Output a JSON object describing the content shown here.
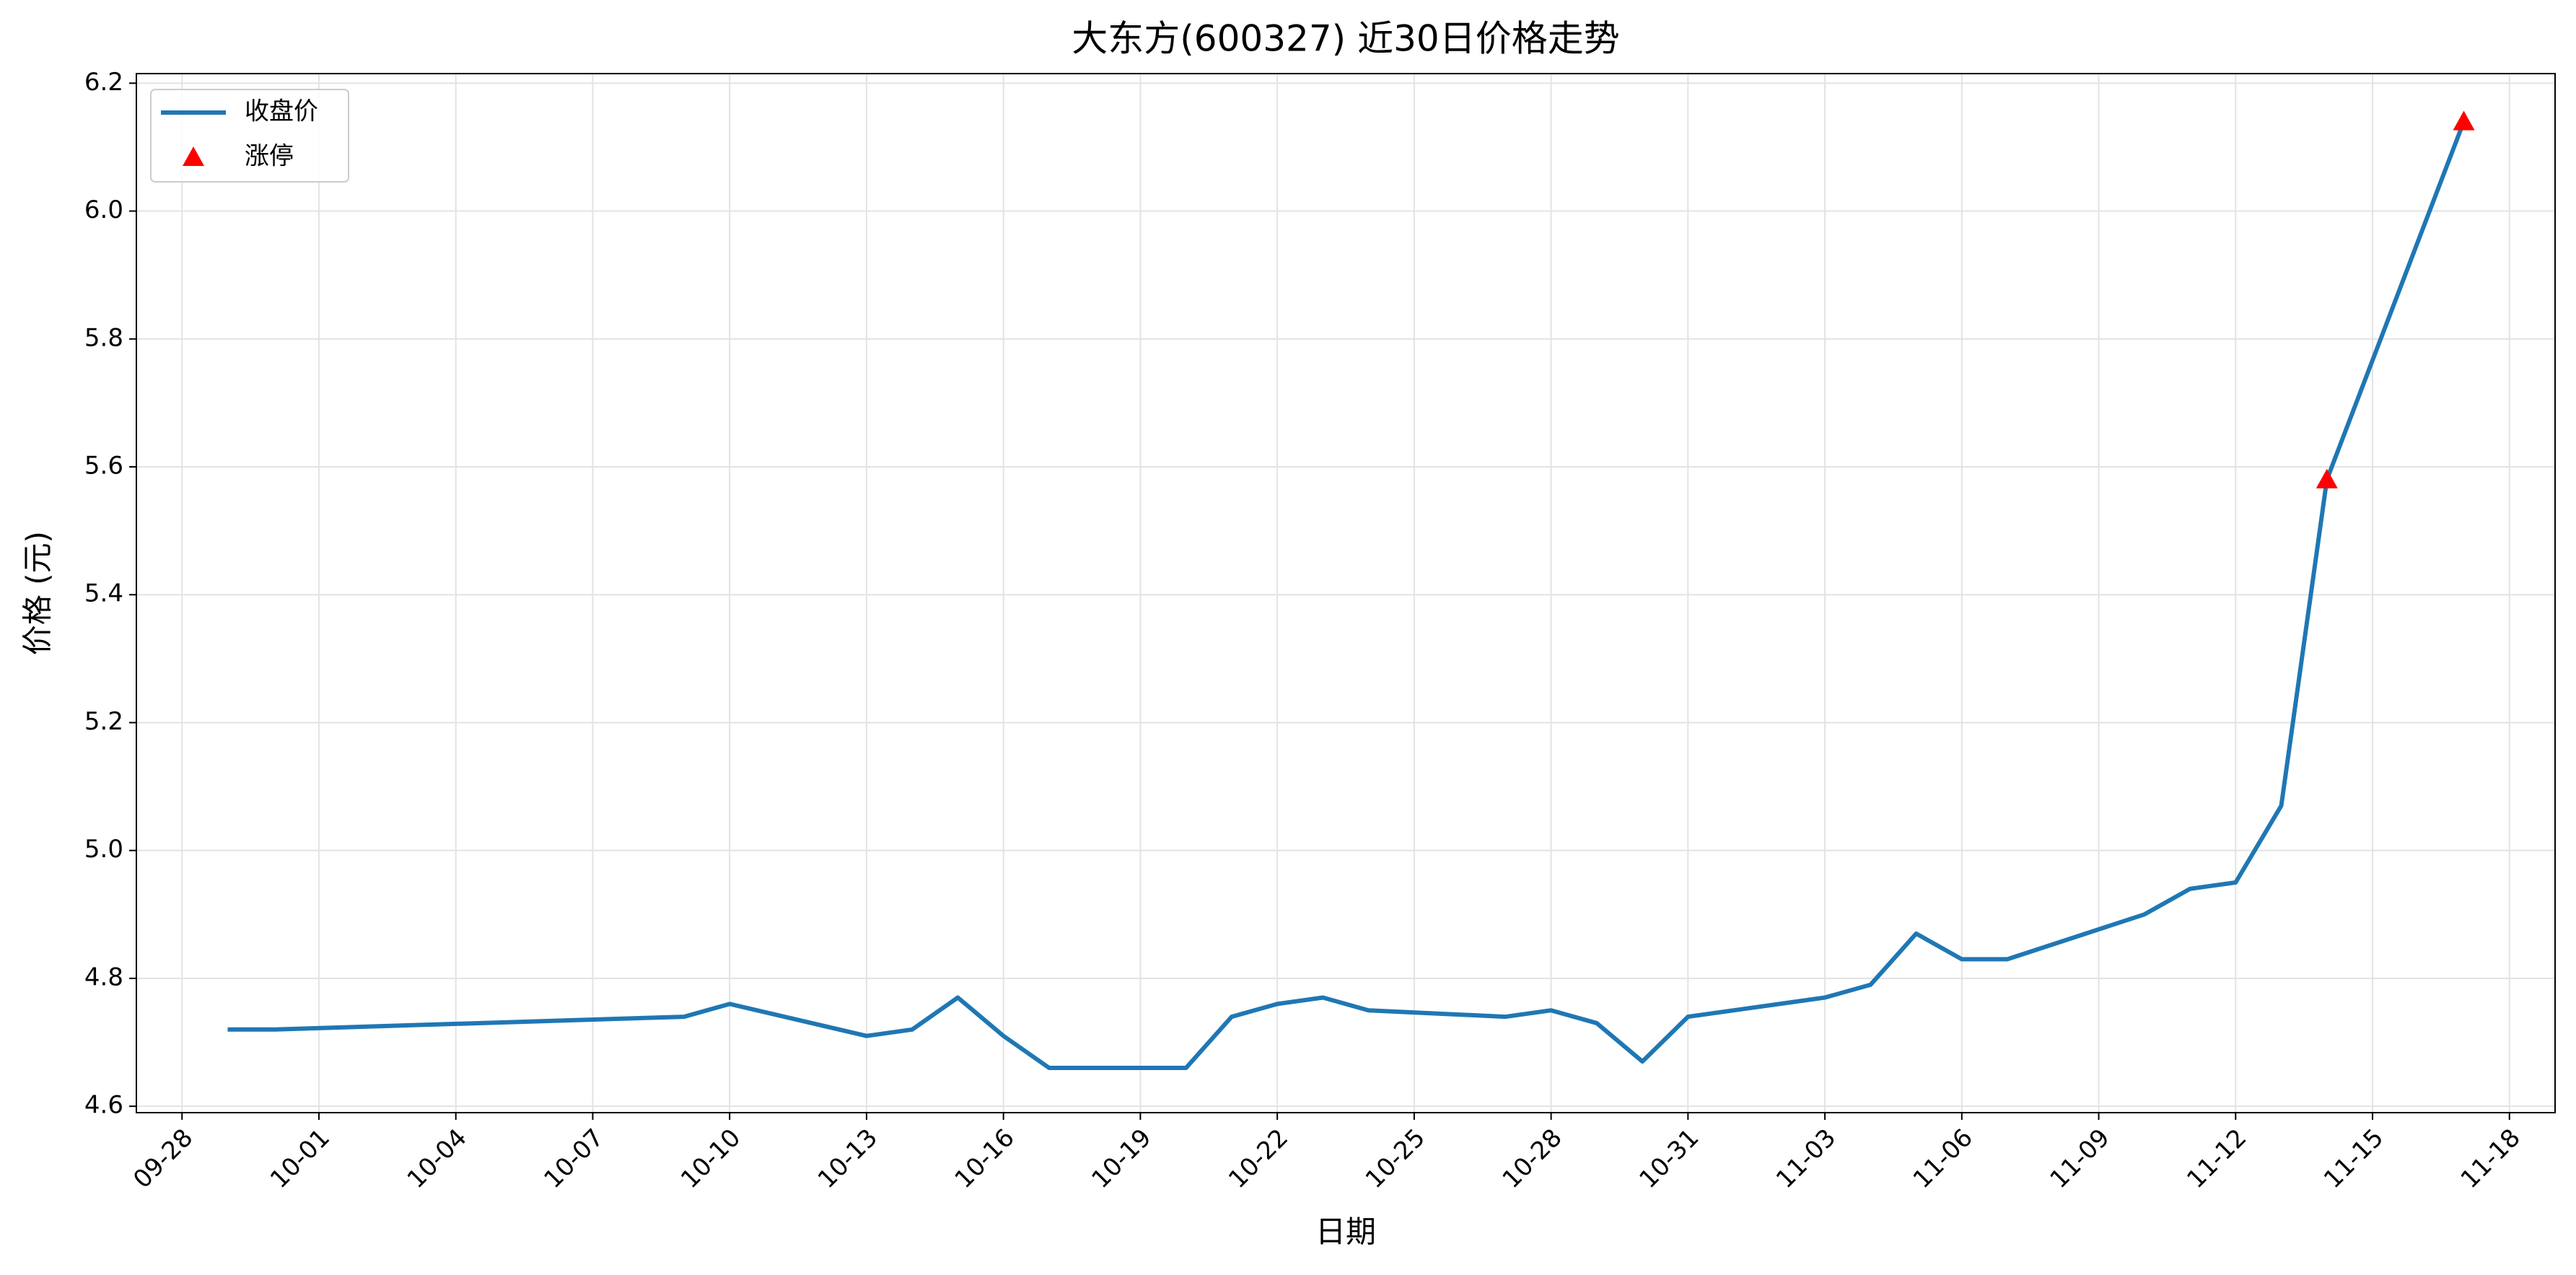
{
  "chart_data": {
    "type": "line",
    "title": "大东方(600327) 近30日价格走势",
    "xlabel": "日期",
    "ylabel": "价格 (元)",
    "series": [
      {
        "name": "收盘价",
        "type": "line",
        "color": "#1f77b4",
        "x": [
          "09-29",
          "09-30",
          "10-09",
          "10-10",
          "10-13",
          "10-14",
          "10-15",
          "10-16",
          "10-17",
          "10-20",
          "10-21",
          "10-22",
          "10-23",
          "10-24",
          "10-27",
          "10-28",
          "10-29",
          "10-30",
          "10-31",
          "11-03",
          "11-04",
          "11-05",
          "11-06",
          "11-07",
          "11-10",
          "11-11",
          "11-12",
          "11-13",
          "11-14",
          "11-17"
        ],
        "values": [
          4.72,
          4.72,
          4.74,
          4.76,
          4.71,
          4.72,
          4.77,
          4.71,
          4.66,
          4.66,
          4.74,
          4.76,
          4.77,
          4.75,
          4.74,
          4.75,
          4.73,
          4.67,
          4.74,
          4.77,
          4.79,
          4.87,
          4.83,
          4.83,
          4.9,
          4.94,
          4.95,
          5.07,
          5.58,
          6.14
        ]
      },
      {
        "name": "涨停",
        "type": "scatter",
        "marker": "triangle",
        "color": "#ff0000",
        "x": [
          "11-14",
          "11-17"
        ],
        "values": [
          5.58,
          6.14
        ]
      }
    ],
    "xlim": [
      "09-27",
      "11-19"
    ],
    "xticks": [
      "09-28",
      "10-01",
      "10-04",
      "10-07",
      "10-10",
      "10-13",
      "10-16",
      "10-19",
      "10-22",
      "10-25",
      "10-28",
      "10-31",
      "11-03",
      "11-06",
      "11-09",
      "11-12",
      "11-15",
      "11-18"
    ],
    "ylim": [
      4.59,
      6.215
    ],
    "yticks": [
      4.6,
      4.8,
      {
        "value": 5,
        "label": "5.0"
      },
      5.2,
      5.4,
      5.6,
      5.8,
      {
        "value": 6,
        "label": "6.0"
      },
      6.2
    ],
    "grid": true,
    "legend": "upper left"
  }
}
